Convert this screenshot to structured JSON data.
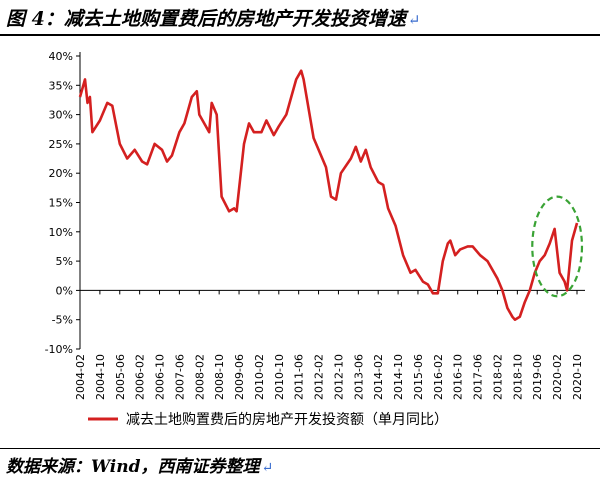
{
  "figure": {
    "title": "图 4：减去土地购置费后的房地产开发投资增速",
    "title_mark": "↵",
    "source": "数据来源：Wind，西南证券整理",
    "source_mark": "↵"
  },
  "colors": {
    "series": "#d42020",
    "highlight": "#3aa335",
    "axis": "#000000"
  },
  "chart_data": {
    "type": "line",
    "title": "",
    "xlabel": "",
    "ylabel": "",
    "ylim": [
      -10,
      40
    ],
    "yticks": [
      -10,
      -5,
      0,
      5,
      10,
      15,
      20,
      25,
      30,
      35,
      40
    ],
    "ytick_labels": [
      "-10%",
      "-5%",
      "0%",
      "5%",
      "10%",
      "15%",
      "20%",
      "25%",
      "30%",
      "35%",
      "40%"
    ],
    "xticks": [
      "2004-02",
      "2004-10",
      "2005-06",
      "2006-02",
      "2006-10",
      "2007-06",
      "2008-02",
      "2008-10",
      "2009-06",
      "2010-02",
      "2010-10",
      "2011-06",
      "2012-02",
      "2012-10",
      "2013-06",
      "2014-02",
      "2014-10",
      "2015-06",
      "2016-02",
      "2016-10",
      "2017-06",
      "2018-02",
      "2018-10",
      "2019-06",
      "2020-02",
      "2020-10"
    ],
    "grid": false,
    "legend_position": "bottom",
    "highlight": {
      "shape": "dashed-ellipse",
      "x_range": [
        "2019-04",
        "2020-12"
      ],
      "y_range": [
        -1,
        16
      ]
    },
    "series": [
      {
        "name": "减去土地购置费后的房地产开发投资额（单月同比）",
        "points": [
          [
            "2004-02",
            33
          ],
          [
            "2004-04",
            36
          ],
          [
            "2004-05",
            32
          ],
          [
            "2004-06",
            33
          ],
          [
            "2004-07",
            27
          ],
          [
            "2004-10",
            29
          ],
          [
            "2005-01",
            32
          ],
          [
            "2005-03",
            31.5
          ],
          [
            "2005-06",
            25
          ],
          [
            "2005-09",
            22.5
          ],
          [
            "2005-12",
            24
          ],
          [
            "2006-03",
            22
          ],
          [
            "2006-05",
            21.5
          ],
          [
            "2006-08",
            25
          ],
          [
            "2006-11",
            24
          ],
          [
            "2007-01",
            22
          ],
          [
            "2007-03",
            23
          ],
          [
            "2007-06",
            27
          ],
          [
            "2007-08",
            28.5
          ],
          [
            "2007-11",
            33
          ],
          [
            "2008-01",
            34
          ],
          [
            "2008-02",
            30
          ],
          [
            "2008-06",
            27
          ],
          [
            "2008-07",
            32
          ],
          [
            "2008-09",
            30
          ],
          [
            "2008-11",
            16
          ],
          [
            "2009-02",
            13.5
          ],
          [
            "2009-04",
            14
          ],
          [
            "2009-05",
            13.5
          ],
          [
            "2009-08",
            25
          ],
          [
            "2009-10",
            28.5
          ],
          [
            "2009-12",
            27
          ],
          [
            "2010-03",
            27
          ],
          [
            "2010-05",
            29
          ],
          [
            "2010-08",
            26.5
          ],
          [
            "2010-10",
            28
          ],
          [
            "2011-01",
            30
          ],
          [
            "2011-05",
            36
          ],
          [
            "2011-07",
            37.5
          ],
          [
            "2011-08",
            36
          ],
          [
            "2011-12",
            26
          ],
          [
            "2012-02",
            24
          ],
          [
            "2012-05",
            21
          ],
          [
            "2012-07",
            16
          ],
          [
            "2012-09",
            15.5
          ],
          [
            "2012-11",
            20
          ],
          [
            "2013-03",
            22.5
          ],
          [
            "2013-05",
            24.5
          ],
          [
            "2013-07",
            22
          ],
          [
            "2013-09",
            24
          ],
          [
            "2013-11",
            21
          ],
          [
            "2014-02",
            18.5
          ],
          [
            "2014-04",
            18
          ],
          [
            "2014-06",
            14
          ],
          [
            "2014-09",
            11
          ],
          [
            "2014-12",
            6
          ],
          [
            "2015-03",
            3
          ],
          [
            "2015-05",
            3.5
          ],
          [
            "2015-08",
            1.5
          ],
          [
            "2015-10",
            1
          ],
          [
            "2015-12",
            -0.5
          ],
          [
            "2016-02",
            -0.5
          ],
          [
            "2016-04",
            5
          ],
          [
            "2016-06",
            8
          ],
          [
            "2016-07",
            8.5
          ],
          [
            "2016-09",
            6
          ],
          [
            "2016-11",
            7
          ],
          [
            "2017-02",
            7.5
          ],
          [
            "2017-04",
            7.5
          ],
          [
            "2017-07",
            6
          ],
          [
            "2017-10",
            5
          ],
          [
            "2018-02",
            2
          ],
          [
            "2018-04",
            0
          ],
          [
            "2018-06",
            -3
          ],
          [
            "2018-08",
            -4.5
          ],
          [
            "2018-09",
            -5
          ],
          [
            "2018-11",
            -4.5
          ],
          [
            "2019-01",
            -2
          ],
          [
            "2019-03",
            0
          ],
          [
            "2019-05",
            3
          ],
          [
            "2019-07",
            5
          ],
          [
            "2019-09",
            6
          ],
          [
            "2019-11",
            8
          ],
          [
            "2020-01",
            10.5
          ],
          [
            "2020-03",
            3
          ],
          [
            "2020-05",
            1.5
          ],
          [
            "2020-06",
            0
          ],
          [
            "2020-08",
            8.5
          ],
          [
            "2020-10",
            11.5
          ]
        ]
      }
    ]
  }
}
